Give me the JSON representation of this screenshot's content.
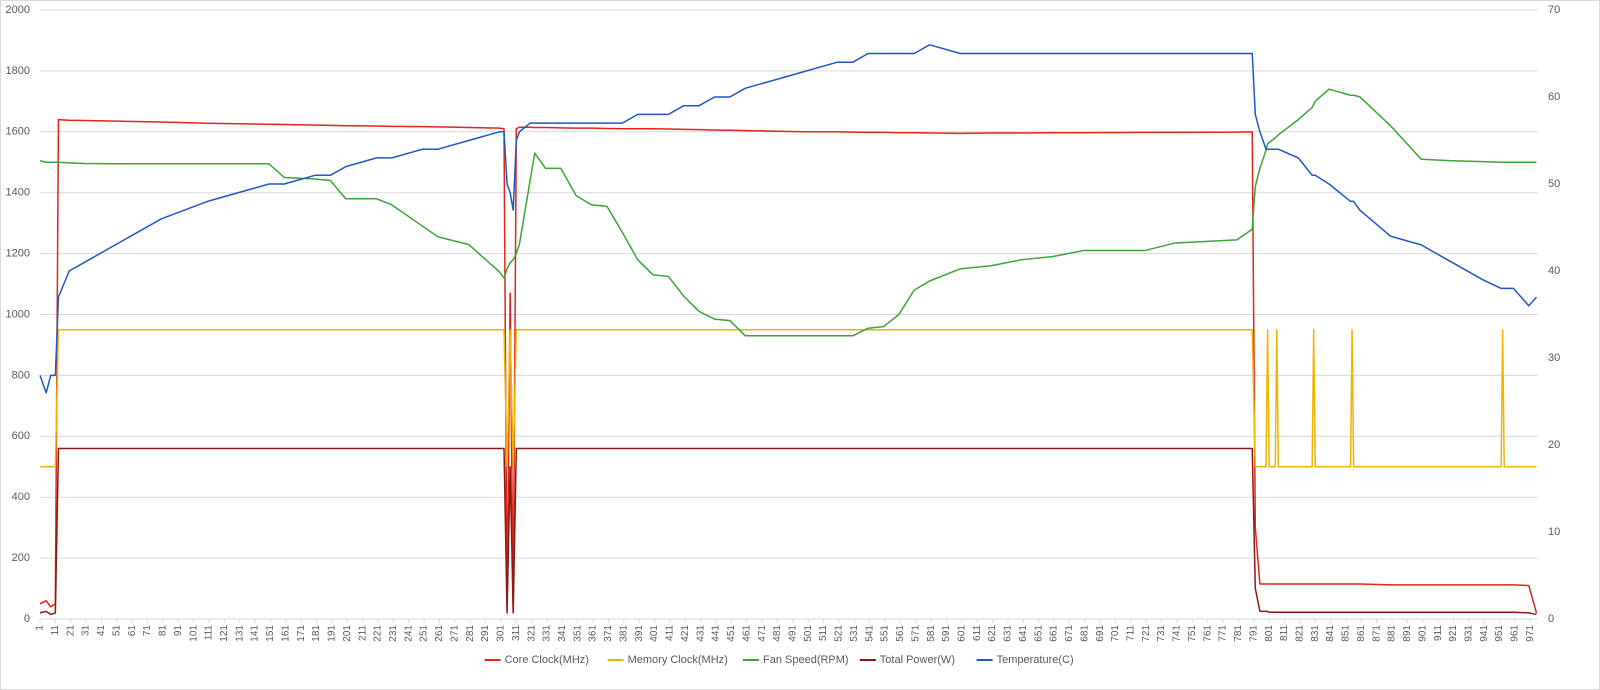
{
  "chart_data": {
    "type": "line",
    "x": [
      1,
      5,
      8,
      11,
      13,
      20,
      30,
      50,
      80,
      110,
      150,
      160,
      180,
      190,
      200,
      220,
      230,
      250,
      260,
      280,
      300,
      303,
      305,
      307,
      309,
      311,
      313,
      320,
      323,
      330,
      340,
      350,
      360,
      370,
      380,
      390,
      400,
      410,
      420,
      430,
      440,
      450,
      460,
      480,
      500,
      520,
      530,
      540,
      550,
      560,
      570,
      580,
      600,
      620,
      640,
      660,
      680,
      720,
      740,
      780,
      790,
      792,
      795,
      799,
      800,
      801,
      805,
      806,
      807,
      820,
      829,
      830,
      831,
      840,
      854,
      855,
      856,
      860,
      880,
      900,
      920,
      940,
      952,
      953,
      954,
      960,
      970,
      975
    ],
    "xlim": [
      1,
      976
    ],
    "xticks": [
      1,
      11,
      21,
      31,
      41,
      51,
      61,
      71,
      81,
      91,
      101,
      111,
      121,
      131,
      141,
      151,
      161,
      171,
      181,
      191,
      201,
      211,
      221,
      231,
      241,
      251,
      261,
      271,
      281,
      291,
      301,
      311,
      321,
      331,
      341,
      351,
      361,
      371,
      381,
      391,
      401,
      411,
      421,
      431,
      441,
      451,
      461,
      471,
      481,
      491,
      501,
      511,
      521,
      531,
      541,
      551,
      561,
      571,
      581,
      591,
      601,
      611,
      621,
      631,
      641,
      651,
      661,
      671,
      681,
      691,
      701,
      711,
      721,
      731,
      741,
      751,
      761,
      771,
      781,
      791,
      801,
      811,
      821,
      831,
      841,
      851,
      861,
      871,
      881,
      891,
      901,
      911,
      921,
      931,
      941,
      951,
      961,
      971
    ],
    "ylim": [
      0,
      2000
    ],
    "yticks": [
      0,
      200,
      400,
      600,
      800,
      1000,
      1200,
      1400,
      1600,
      1800,
      2000
    ],
    "y2lim": [
      0,
      70
    ],
    "y2ticks": [
      0,
      10,
      20,
      30,
      40,
      50,
      60,
      70
    ],
    "grid": true,
    "legend": "bottom",
    "series": [
      {
        "name": "Core Clock(MHz)",
        "color": "#e3241b",
        "values": [
          50,
          60,
          40,
          50,
          1640,
          1638,
          1637,
          1635,
          1632,
          1628,
          1625,
          1624,
          1622,
          1621,
          1620,
          1619,
          1618,
          1617,
          1616,
          1614,
          1612,
          1610,
          30,
          1070,
          20,
          1610,
          1615,
          1615,
          1614,
          1614,
          1613,
          1612,
          1612,
          1611,
          1610,
          1610,
          1610,
          1609,
          1608,
          1607,
          1606,
          1605,
          1604,
          1602,
          1600,
          1600,
          1599,
          1598,
          1598,
          1597,
          1597,
          1596,
          1595,
          1596,
          1596,
          1597,
          1597,
          1598,
          1598,
          1599,
          1600,
          300,
          115,
          115,
          115,
          115,
          115,
          115,
          115,
          115,
          115,
          115,
          115,
          115,
          115,
          115,
          115,
          115,
          112,
          112,
          112,
          112,
          112,
          112,
          112,
          112,
          110,
          20
        ]
      },
      {
        "name": "Memory Clock(MHz)",
        "color": "#f0b400",
        "values": [
          500,
          500,
          500,
          500,
          950,
          950,
          950,
          950,
          950,
          950,
          950,
          950,
          950,
          950,
          950,
          950,
          950,
          950,
          950,
          950,
          950,
          950,
          500,
          950,
          500,
          950,
          950,
          950,
          950,
          950,
          950,
          950,
          950,
          950,
          950,
          950,
          950,
          950,
          950,
          950,
          950,
          950,
          950,
          950,
          950,
          950,
          950,
          950,
          950,
          950,
          950,
          950,
          950,
          950,
          950,
          950,
          950,
          950,
          950,
          950,
          950,
          500,
          500,
          500,
          950,
          500,
          500,
          950,
          500,
          500,
          500,
          950,
          500,
          500,
          500,
          950,
          500,
          500,
          500,
          500,
          500,
          500,
          500,
          950,
          500,
          500,
          500,
          500
        ]
      },
      {
        "name": "Fan Speed(RPM)",
        "color": "#3ca535",
        "values": [
          1505,
          1500,
          1500,
          1500,
          1500,
          1498,
          1496,
          1495,
          1495,
          1495,
          1495,
          1450,
          1445,
          1440,
          1380,
          1380,
          1360,
          1290,
          1255,
          1230,
          1140,
          1120,
          1150,
          1170,
          1180,
          1200,
          1230,
          1440,
          1530,
          1480,
          1480,
          1390,
          1360,
          1355,
          1270,
          1180,
          1130,
          1125,
          1060,
          1010,
          985,
          980,
          930,
          930,
          930,
          930,
          930,
          955,
          960,
          1000,
          1080,
          1110,
          1150,
          1160,
          1180,
          1190,
          1210,
          1210,
          1235,
          1245,
          1280,
          1420,
          1480,
          1540,
          1560,
          1565,
          1580,
          1585,
          1590,
          1640,
          1680,
          1690,
          1700,
          1740,
          1720,
          1720,
          1720,
          1715,
          1620,
          1510,
          1505,
          1502,
          1500,
          1500,
          1500,
          1500,
          1500,
          1500
        ]
      },
      {
        "name": "Total Power(W)",
        "color": "#8b1a0e",
        "values": [
          20,
          25,
          15,
          20,
          560,
          560,
          560,
          560,
          560,
          560,
          560,
          560,
          560,
          560,
          560,
          560,
          560,
          560,
          560,
          560,
          560,
          560,
          20,
          500,
          20,
          560,
          560,
          560,
          560,
          560,
          560,
          560,
          560,
          560,
          560,
          560,
          560,
          560,
          560,
          560,
          560,
          560,
          560,
          560,
          560,
          560,
          560,
          560,
          560,
          560,
          560,
          560,
          560,
          560,
          560,
          560,
          560,
          560,
          560,
          560,
          560,
          100,
          25,
          25,
          25,
          22,
          22,
          22,
          22,
          22,
          22,
          22,
          22,
          22,
          22,
          22,
          22,
          22,
          22,
          22,
          22,
          22,
          22,
          22,
          22,
          22,
          20,
          15
        ]
      },
      {
        "name": "Temperature(C)",
        "color": "#1f57c3",
        "axis": "y2",
        "values": [
          28,
          26,
          28,
          28,
          37,
          40,
          41,
          43,
          46,
          48,
          50,
          50,
          51,
          51,
          52,
          53,
          53,
          54,
          54,
          55,
          56,
          56,
          50,
          49,
          47,
          55,
          56,
          57,
          57,
          57,
          57,
          57,
          57,
          57,
          57,
          58,
          58,
          58,
          59,
          59,
          60,
          60,
          61,
          62,
          63,
          64,
          64,
          65,
          65,
          65,
          65,
          66,
          65,
          65,
          65,
          65,
          65,
          65,
          65,
          65,
          65,
          58,
          56,
          54,
          54,
          54,
          54,
          54,
          54,
          53,
          51,
          51,
          51,
          50,
          48,
          48,
          48,
          47,
          44,
          43,
          41,
          39,
          38,
          38,
          38,
          38,
          36,
          37
        ]
      }
    ]
  }
}
